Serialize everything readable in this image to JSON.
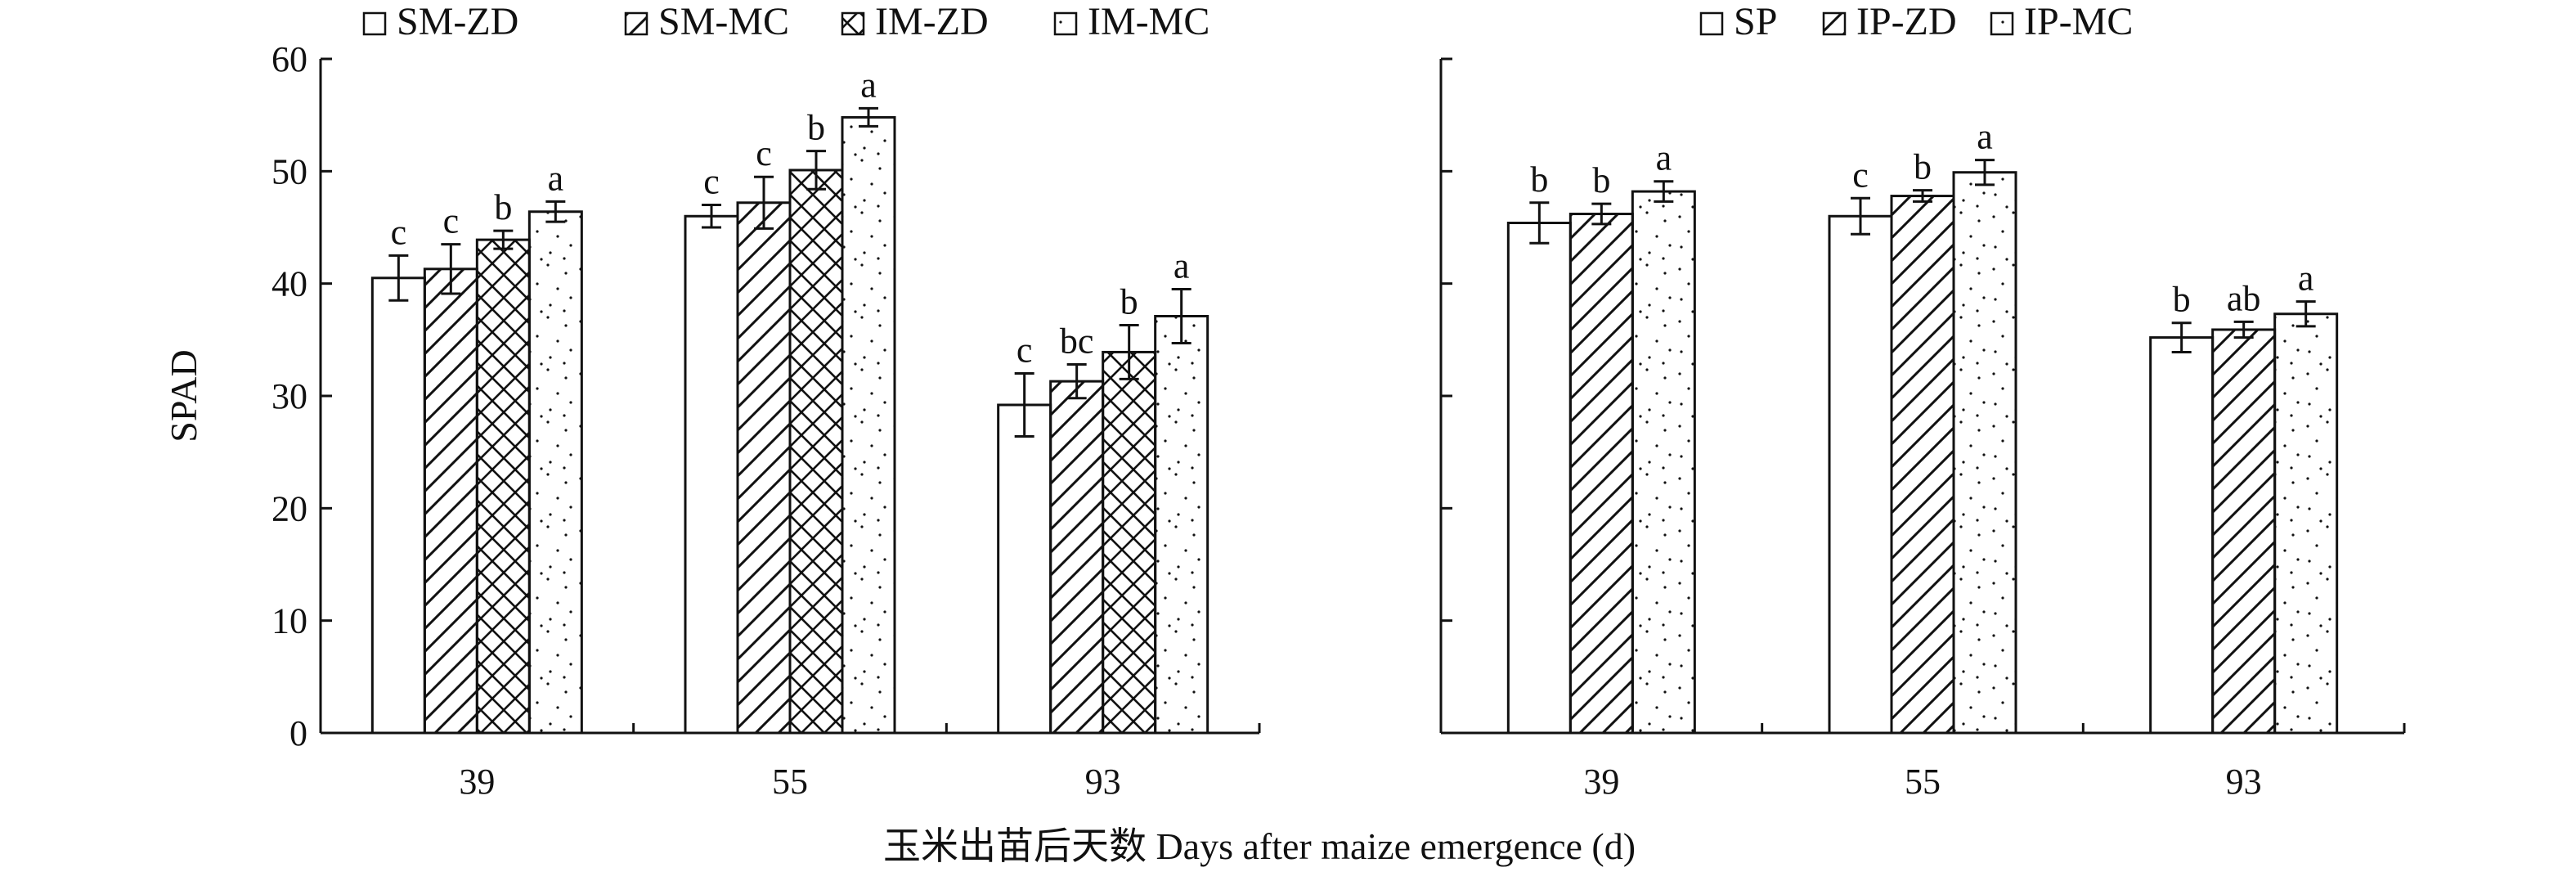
{
  "xlabel": "玉米出苗后天数 Days after maize emergence (d)",
  "chart_data": [
    {
      "type": "bar",
      "ylabel": "SPAD",
      "ylim": [
        0,
        60
      ],
      "yticks": [
        0,
        10,
        20,
        30,
        40,
        50,
        60
      ],
      "show_y_tick_labels": true,
      "categories": [
        "39",
        "55",
        "93"
      ],
      "legend_position": "top-left",
      "series": [
        {
          "name": "SM-ZD",
          "pattern": "none",
          "values": [
            40.5,
            46.0,
            29.2
          ],
          "errors": [
            2.0,
            1.0,
            2.8
          ],
          "labels": [
            "c",
            "c",
            "c"
          ]
        },
        {
          "name": "SM-MC",
          "pattern": "hatch",
          "values": [
            41.3,
            47.2,
            31.3
          ],
          "errors": [
            2.2,
            2.3,
            1.5
          ],
          "labels": [
            "c",
            "c",
            "bc"
          ]
        },
        {
          "name": "IM-ZD",
          "pattern": "crosshatch",
          "values": [
            43.9,
            50.1,
            33.9
          ],
          "errors": [
            0.8,
            1.7,
            2.4
          ],
          "labels": [
            "b",
            "b",
            "b"
          ]
        },
        {
          "name": "IM-MC",
          "pattern": "dots",
          "values": [
            46.4,
            54.8,
            37.1
          ],
          "errors": [
            0.9,
            0.8,
            2.4
          ],
          "labels": [
            "a",
            "a",
            "a"
          ]
        }
      ]
    },
    {
      "type": "bar",
      "ylabel": "",
      "ylim": [
        0,
        60
      ],
      "yticks": [
        0,
        10,
        20,
        30,
        40,
        50,
        60
      ],
      "show_y_tick_labels": false,
      "categories": [
        "39",
        "55",
        "93"
      ],
      "legend_position": "top-right",
      "series": [
        {
          "name": "SP",
          "pattern": "none",
          "values": [
            45.4,
            46.0,
            35.2
          ],
          "errors": [
            1.8,
            1.6,
            1.3
          ],
          "labels": [
            "b",
            "c",
            "b"
          ]
        },
        {
          "name": "IP-ZD",
          "pattern": "hatch",
          "values": [
            46.2,
            47.8,
            35.9
          ],
          "errors": [
            0.9,
            0.5,
            0.7
          ],
          "labels": [
            "b",
            "b",
            "ab"
          ]
        },
        {
          "name": "IP-MC",
          "pattern": "dots",
          "values": [
            48.2,
            49.9,
            37.3
          ],
          "errors": [
            0.9,
            1.1,
            1.1
          ],
          "labels": [
            "a",
            "a",
            "a"
          ]
        }
      ]
    }
  ],
  "colors": {
    "stroke": "#111111",
    "fill": "#ffffff",
    "background": "#ffffff"
  }
}
